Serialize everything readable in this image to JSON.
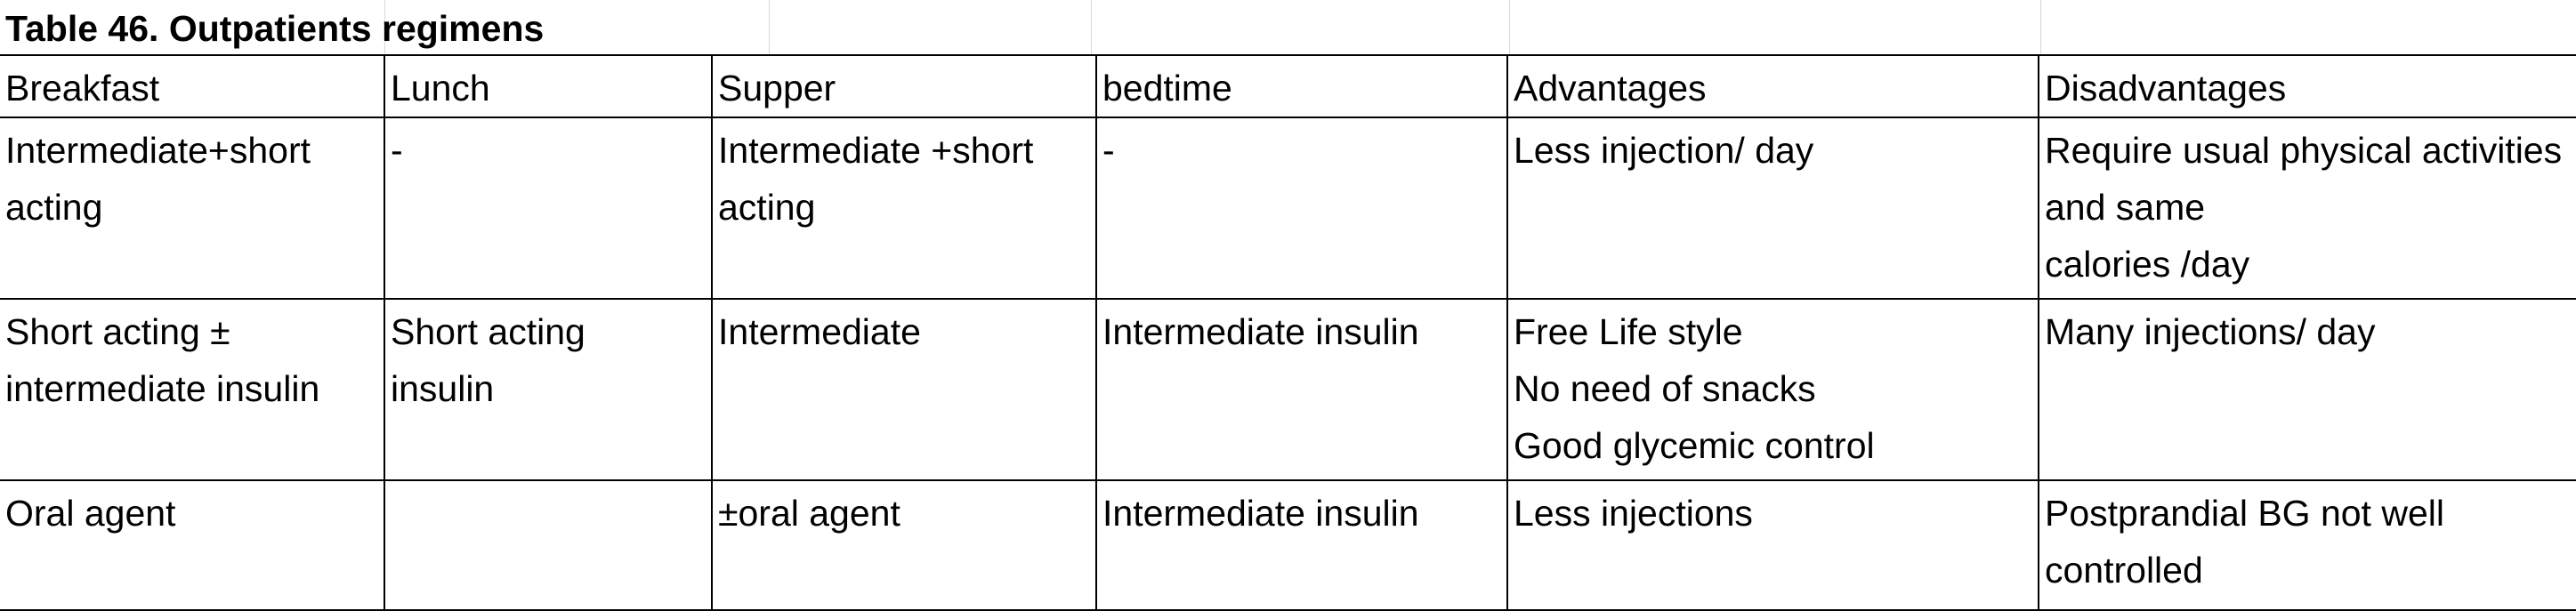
{
  "table": {
    "title": "Table 46. Outpatients regimens",
    "headers": [
      "Breakfast",
      "Lunch",
      "Supper",
      "bedtime",
      "Advantages",
      "Disadvantages"
    ],
    "rows": [
      [
        [
          "Intermediate+short",
          "acting"
        ],
        [
          "-"
        ],
        [
          "Intermediate +short",
          "acting"
        ],
        [
          "-"
        ],
        [
          "Less injection/ day"
        ],
        [
          "Require usual physical activities",
          "and same",
          "calories /day"
        ]
      ],
      [
        [
          "Short acting ±",
          "intermediate insulin"
        ],
        [
          "Short acting",
          "insulin"
        ],
        [
          "Intermediate"
        ],
        [
          "Intermediate insulin"
        ],
        [
          " Free Life style",
          "No need of snacks",
          "Good glycemic control"
        ],
        [
          "Many injections/ day"
        ]
      ],
      [
        [
          "Oral agent"
        ],
        [
          ""
        ],
        [
          "±oral agent"
        ],
        [
          "Intermediate insulin"
        ],
        [
          "Less injections"
        ],
        [
          "Postprandial BG not well",
          "controlled"
        ]
      ]
    ]
  }
}
